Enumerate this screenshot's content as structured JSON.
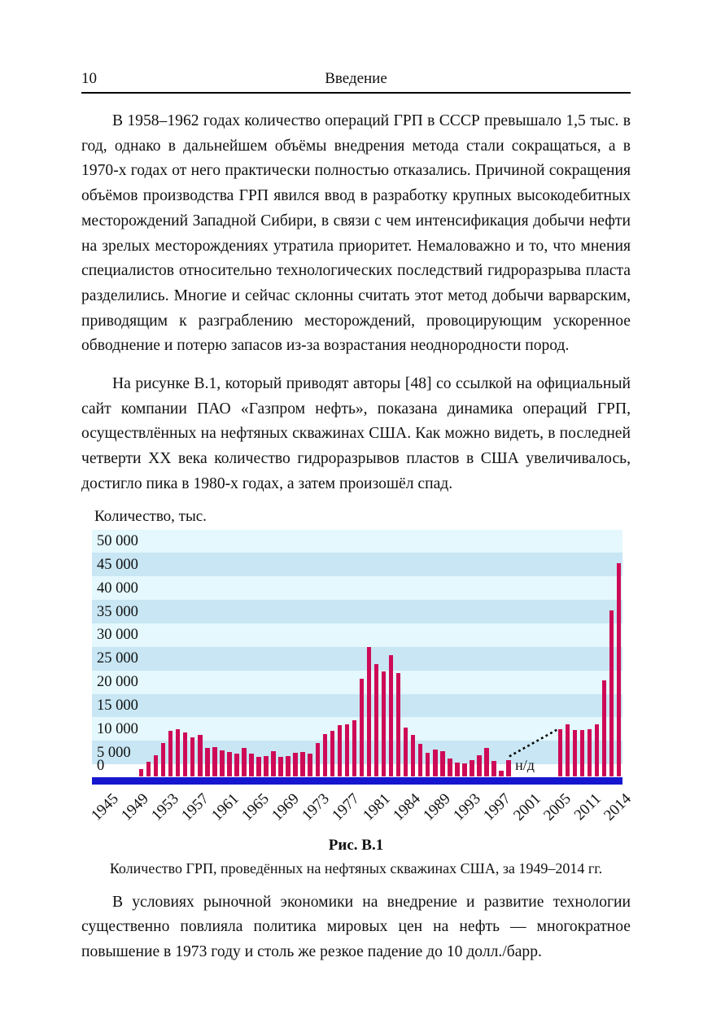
{
  "page": {
    "header": {
      "page_number": "10",
      "running_title": "Введение"
    },
    "paragraphs": {
      "p1": "В 1958–1962 годах количество операций ГРП в СССР превышало 1,5 тыс. в год, однако в дальнейшем объёмы внедрения метода стали сокращаться, а в 1970-х годах от него практически полностью отказались. Причиной сокращения объёмов производства ГРП явился ввод в разработку крупных высокодебитных месторождений Западной Сибири, в связи с чем интенсификация добычи нефти на зрелых месторождениях утратила приоритет. Немаловажно и то, что мнения специалистов относительно технологических последствий гидроразрыва пласта разделились. Многие и сейчас склонны считать этот метод добычи варварским, приводящим к разграблению месторождений, провоцирующим ускоренное обводнение и потерю запасов из-за возрастания неоднородности пород.",
      "p2": "На рисунке В.1, который приводят авторы [48] со ссылкой на официальный сайт компании ПАО «Газпром нефть», показана динамика операций ГРП, осуществлённых на нефтяных скважинах США. Как можно видеть, в последней четверти XX века количество гидроразрывов пластов в США увеличивалось, достигло пика в 1980-х годах, а затем произошёл спад.",
      "p3": "В условиях рыночной экономики на внедрение и развитие технологии существенно повлияла политика мировых цен на нефть — многократное повышение в 1973 году и столь же резкое падение до 10 долл./барр."
    },
    "figure": {
      "label": "Рис. В.1",
      "caption": "Количество ГРП, проведённых на нефтяных скважинах США, за 1949–2014 гг."
    }
  },
  "chart_data": {
    "type": "bar",
    "title": "",
    "ylabel": "Количество, тыс.",
    "xlabel": "",
    "ylim": [
      0,
      52500
    ],
    "grid": "alternating horizontal bands every 5000",
    "legend": "none",
    "no_data_label": "н/д",
    "no_data_note": "dotted line bridges missing years between 1999 and 2006",
    "y_tick_values": [
      0,
      5000,
      10000,
      15000,
      20000,
      25000,
      30000,
      35000,
      40000,
      45000,
      50000
    ],
    "y_tick_labels": [
      "0",
      "5 000",
      "10 000",
      "15 000",
      "20 000",
      "25 000",
      "30 000",
      "35 000",
      "40 000",
      "45 000",
      "50 000"
    ],
    "x_axis_labels": [
      "1945",
      "1949",
      "1953",
      "1957",
      "1961",
      "1965",
      "1969",
      "1973",
      "1977",
      "1981",
      "1984",
      "1989",
      "1993",
      "1997",
      "2001",
      "2005",
      "2011",
      "2014"
    ],
    "years": [
      1949,
      1950,
      1951,
      1952,
      1953,
      1954,
      1955,
      1956,
      1957,
      1958,
      1959,
      1960,
      1961,
      1962,
      1963,
      1964,
      1965,
      1966,
      1967,
      1968,
      1969,
      1970,
      1971,
      1972,
      1973,
      1974,
      1975,
      1976,
      1977,
      1978,
      1979,
      1980,
      1981,
      1982,
      1983,
      1984,
      1985,
      1986,
      1987,
      1988,
      1989,
      1990,
      1991,
      1992,
      1993,
      1994,
      1995,
      1996,
      1997,
      1998,
      1999,
      2000,
      2001,
      2002,
      2003,
      2004,
      2005,
      2006,
      2007,
      2008,
      2009,
      2010,
      2011,
      2012,
      2013,
      2014
    ],
    "values": [
      1500,
      3100,
      4400,
      7000,
      9600,
      9900,
      9300,
      8200,
      8800,
      6000,
      6100,
      5500,
      5100,
      4800,
      6000,
      4800,
      4100,
      4300,
      5300,
      4100,
      4300,
      5000,
      5100,
      4800,
      7000,
      8900,
      9700,
      10800,
      11000,
      11900,
      20800,
      27400,
      23900,
      22300,
      25800,
      21900,
      10400,
      8700,
      6900,
      4900,
      5700,
      5300,
      3700,
      2800,
      2700,
      3400,
      4400,
      6000,
      3200,
      1200,
      3400,
      null,
      null,
      null,
      null,
      null,
      null,
      10000,
      11000,
      9800,
      9800,
      10000,
      11000,
      20400,
      35200,
      45300
    ],
    "colors": {
      "bar": "#CE0A57",
      "band_blue": "#C8E6F3",
      "band_pale": "#E4F8FD",
      "band_bottom": "#FDFEFF",
      "axis_line": "#1616CF",
      "dotted_line": "#000000",
      "text": "#111111"
    }
  }
}
